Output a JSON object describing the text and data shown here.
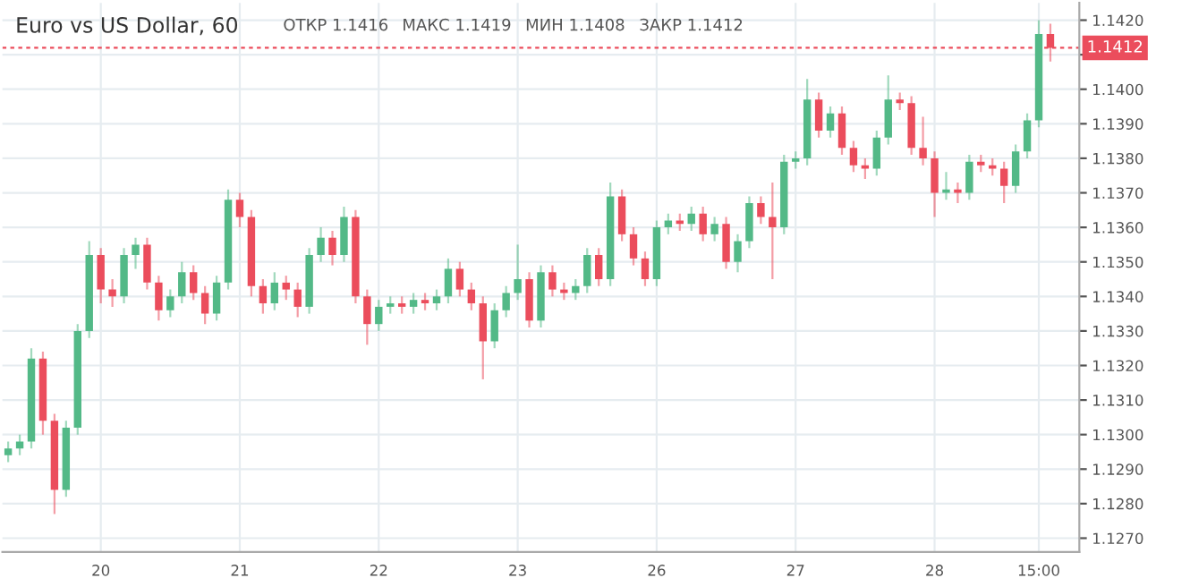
{
  "chart_data": {
    "type": "candlestick",
    "title": "Euro vs US Dollar, 60",
    "annotations": [
      "ОТКР 1.1416",
      "МАКС 1.1419",
      "МИН 1.1408",
      "ЗАКР 1.1412"
    ],
    "categories": [
      null,
      null,
      null,
      null,
      null,
      null,
      null,
      null,
      "20",
      null,
      null,
      null,
      null,
      null,
      null,
      null,
      null,
      null,
      null,
      null,
      "21",
      null,
      null,
      null,
      null,
      null,
      null,
      null,
      null,
      null,
      null,
      null,
      "22",
      null,
      null,
      null,
      null,
      null,
      null,
      null,
      null,
      null,
      null,
      null,
      "23",
      null,
      null,
      null,
      null,
      null,
      null,
      null,
      null,
      null,
      null,
      null,
      "26",
      null,
      null,
      null,
      null,
      null,
      null,
      null,
      null,
      null,
      null,
      null,
      "27",
      null,
      null,
      null,
      null,
      null,
      null,
      null,
      null,
      null,
      null,
      null,
      "28",
      null,
      null,
      null,
      null,
      null,
      null,
      null,
      null,
      "15:00",
      null
    ],
    "ohlc": [
      [
        1.1294,
        1.1298,
        1.1292,
        1.1296
      ],
      [
        1.1296,
        1.13,
        1.1294,
        1.1298
      ],
      [
        1.1298,
        1.1325,
        1.1296,
        1.1322
      ],
      [
        1.1322,
        1.1324,
        1.13,
        1.1304
      ],
      [
        1.1304,
        1.1306,
        1.1277,
        1.1284
      ],
      [
        1.1284,
        1.1304,
        1.1282,
        1.1302
      ],
      [
        1.1302,
        1.1332,
        1.13,
        1.133
      ],
      [
        1.133,
        1.1356,
        1.1328,
        1.1352
      ],
      [
        1.1352,
        1.1354,
        1.1338,
        1.1342
      ],
      [
        1.1342,
        1.1345,
        1.1337,
        1.134
      ],
      [
        1.134,
        1.1354,
        1.1338,
        1.1352
      ],
      [
        1.1352,
        1.1357,
        1.1348,
        1.1355
      ],
      [
        1.1355,
        1.1357,
        1.1342,
        1.1344
      ],
      [
        1.1344,
        1.1346,
        1.1333,
        1.1336
      ],
      [
        1.1336,
        1.1342,
        1.1334,
        1.134
      ],
      [
        1.134,
        1.135,
        1.1338,
        1.1347
      ],
      [
        1.1347,
        1.1349,
        1.1339,
        1.1341
      ],
      [
        1.1341,
        1.1343,
        1.1332,
        1.1335
      ],
      [
        1.1335,
        1.1346,
        1.1333,
        1.1344
      ],
      [
        1.1344,
        1.1371,
        1.1342,
        1.1368
      ],
      [
        1.1368,
        1.137,
        1.136,
        1.1363
      ],
      [
        1.1363,
        1.1365,
        1.134,
        1.1343
      ],
      [
        1.1343,
        1.1345,
        1.1335,
        1.1338
      ],
      [
        1.1338,
        1.1347,
        1.1336,
        1.1344
      ],
      [
        1.1344,
        1.1346,
        1.1339,
        1.1342
      ],
      [
        1.1342,
        1.1344,
        1.1334,
        1.1337
      ],
      [
        1.1337,
        1.1354,
        1.1335,
        1.1352
      ],
      [
        1.1352,
        1.136,
        1.135,
        1.1357
      ],
      [
        1.1357,
        1.1359,
        1.1349,
        1.1352
      ],
      [
        1.1352,
        1.1366,
        1.135,
        1.1363
      ],
      [
        1.1363,
        1.1365,
        1.1338,
        1.134
      ],
      [
        1.134,
        1.1342,
        1.1326,
        1.1332
      ],
      [
        1.1332,
        1.1339,
        1.133,
        1.1337
      ],
      [
        1.1337,
        1.134,
        1.1335,
        1.1338
      ],
      [
        1.1338,
        1.134,
        1.1335,
        1.1337
      ],
      [
        1.1337,
        1.1341,
        1.1335,
        1.1339
      ],
      [
        1.1339,
        1.1341,
        1.1336,
        1.1338
      ],
      [
        1.1338,
        1.1342,
        1.1336,
        1.134
      ],
      [
        1.134,
        1.1351,
        1.1338,
        1.1348
      ],
      [
        1.1348,
        1.135,
        1.134,
        1.1342
      ],
      [
        1.1342,
        1.1344,
        1.1336,
        1.1338
      ],
      [
        1.1338,
        1.134,
        1.1316,
        1.1327
      ],
      [
        1.1327,
        1.1338,
        1.1325,
        1.1336
      ],
      [
        1.1336,
        1.1343,
        1.1334,
        1.1341
      ],
      [
        1.1341,
        1.1355,
        1.1339,
        1.1345
      ],
      [
        1.1345,
        1.1347,
        1.1331,
        1.1333
      ],
      [
        1.1333,
        1.1349,
        1.1331,
        1.1347
      ],
      [
        1.1347,
        1.1349,
        1.134,
        1.1342
      ],
      [
        1.1342,
        1.1344,
        1.1339,
        1.1341
      ],
      [
        1.1341,
        1.1345,
        1.1339,
        1.1343
      ],
      [
        1.1343,
        1.1354,
        1.1341,
        1.1352
      ],
      [
        1.1352,
        1.1354,
        1.1343,
        1.1345
      ],
      [
        1.1345,
        1.1373,
        1.1343,
        1.1369
      ],
      [
        1.1369,
        1.1371,
        1.1356,
        1.1358
      ],
      [
        1.1358,
        1.136,
        1.1349,
        1.1351
      ],
      [
        1.1351,
        1.1353,
        1.1343,
        1.1345
      ],
      [
        1.1345,
        1.1362,
        1.1343,
        1.136
      ],
      [
        1.136,
        1.1364,
        1.1358,
        1.1362
      ],
      [
        1.1362,
        1.1364,
        1.1359,
        1.1361
      ],
      [
        1.1361,
        1.1366,
        1.1359,
        1.1364
      ],
      [
        1.1364,
        1.1366,
        1.1356,
        1.1358
      ],
      [
        1.1358,
        1.1363,
        1.1356,
        1.1361
      ],
      [
        1.1361,
        1.1363,
        1.1348,
        1.135
      ],
      [
        1.135,
        1.1358,
        1.1347,
        1.1356
      ],
      [
        1.1356,
        1.1369,
        1.1354,
        1.1367
      ],
      [
        1.1367,
        1.1369,
        1.1361,
        1.1363
      ],
      [
        1.1363,
        1.1373,
        1.1345,
        1.136
      ],
      [
        1.136,
        1.1381,
        1.1358,
        1.1379
      ],
      [
        1.1379,
        1.1382,
        1.1377,
        1.138
      ],
      [
        1.138,
        1.1403,
        1.1378,
        1.1397
      ],
      [
        1.1397,
        1.1399,
        1.1386,
        1.1388
      ],
      [
        1.1388,
        1.1395,
        1.1386,
        1.1393
      ],
      [
        1.1393,
        1.1395,
        1.1381,
        1.1383
      ],
      [
        1.1383,
        1.1385,
        1.1376,
        1.1378
      ],
      [
        1.1378,
        1.138,
        1.1374,
        1.1377
      ],
      [
        1.1377,
        1.1388,
        1.1375,
        1.1386
      ],
      [
        1.1386,
        1.1404,
        1.1384,
        1.1397
      ],
      [
        1.1397,
        1.1399,
        1.1394,
        1.1396
      ],
      [
        1.1396,
        1.1398,
        1.1381,
        1.1383
      ],
      [
        1.1383,
        1.1392,
        1.1378,
        1.138
      ],
      [
        1.138,
        1.1382,
        1.1363,
        1.137
      ],
      [
        1.137,
        1.1376,
        1.1368,
        1.1371
      ],
      [
        1.1371,
        1.1373,
        1.1367,
        1.137
      ],
      [
        1.137,
        1.1381,
        1.1368,
        1.1379
      ],
      [
        1.1379,
        1.1381,
        1.1376,
        1.1378
      ],
      [
        1.1378,
        1.138,
        1.1375,
        1.1377
      ],
      [
        1.1377,
        1.1379,
        1.1367,
        1.1372
      ],
      [
        1.1372,
        1.1384,
        1.137,
        1.1382
      ],
      [
        1.1382,
        1.1393,
        1.138,
        1.1391
      ],
      [
        1.1391,
        1.142,
        1.1389,
        1.1416
      ],
      [
        1.1416,
        1.1419,
        1.1408,
        1.1412
      ]
    ],
    "colors": [
      "#53b987",
      "#53b987",
      "#53b987",
      "#eb4d5c",
      "#eb4d5c",
      "#53b987",
      "#53b987",
      "#53b987",
      "#eb4d5c",
      "#eb4d5c",
      "#53b987",
      "#53b987",
      "#eb4d5c",
      "#eb4d5c",
      "#53b987",
      "#53b987",
      "#eb4d5c",
      "#eb4d5c",
      "#53b987",
      "#53b987",
      "#eb4d5c",
      "#eb4d5c",
      "#eb4d5c",
      "#53b987",
      "#eb4d5c",
      "#eb4d5c",
      "#53b987",
      "#53b987",
      "#eb4d5c",
      "#53b987",
      "#eb4d5c",
      "#eb4d5c",
      "#53b987",
      "#53b987",
      "#eb4d5c",
      "#53b987",
      "#eb4d5c",
      "#53b987",
      "#53b987",
      "#eb4d5c",
      "#eb4d5c",
      "#eb4d5c",
      "#53b987",
      "#53b987",
      "#53b987",
      "#eb4d5c",
      "#53b987",
      "#eb4d5c",
      "#eb4d5c",
      "#53b987",
      "#53b987",
      "#eb4d5c",
      "#53b987",
      "#eb4d5c",
      "#eb4d5c",
      "#eb4d5c",
      "#53b987",
      "#53b987",
      "#eb4d5c",
      "#53b987",
      "#eb4d5c",
      "#53b987",
      "#eb4d5c",
      "#53b987",
      "#53b987",
      "#eb4d5c",
      "#eb4d5c",
      "#53b987",
      "#53b987",
      "#53b987",
      "#eb4d5c",
      "#53b987",
      "#eb4d5c",
      "#eb4d5c",
      "#eb4d5c",
      "#53b987",
      "#53b987",
      "#eb4d5c",
      "#eb4d5c",
      "#eb4d5c",
      "#eb4d5c",
      "#53b987",
      "#eb4d5c",
      "#53b987",
      "#eb4d5c",
      "#eb4d5c",
      "#eb4d5c",
      "#53b987",
      "#53b987",
      "#53b987",
      "#eb4d5c"
    ],
    "ylim": [
      1.1266,
      1.1425
    ],
    "yticks": [
      {
        "value": 1.127,
        "label": "1.1270"
      },
      {
        "value": 1.128,
        "label": "1.1280"
      },
      {
        "value": 1.129,
        "label": "1.1290"
      },
      {
        "value": 1.13,
        "label": "1.1300"
      },
      {
        "value": 1.131,
        "label": "1.1310"
      },
      {
        "value": 1.132,
        "label": "1.1320"
      },
      {
        "value": 1.133,
        "label": "1.1330"
      },
      {
        "value": 1.134,
        "label": "1.1340"
      },
      {
        "value": 1.135,
        "label": "1.1350"
      },
      {
        "value": 1.136,
        "label": "1.1360"
      },
      {
        "value": 1.137,
        "label": "1.1370"
      },
      {
        "value": 1.138,
        "label": "1.1380"
      },
      {
        "value": 1.139,
        "label": "1.1390"
      },
      {
        "value": 1.14,
        "label": "1.1400"
      },
      {
        "value": 1.141,
        "label": null
      },
      {
        "value": 1.142,
        "label": "1.1420"
      }
    ],
    "ref_lines": [
      {
        "axis": "y",
        "value": 1.1412,
        "label": "1.1412",
        "color": "#eb4d5c",
        "line_style": "dashed"
      }
    ],
    "grid": true
  }
}
